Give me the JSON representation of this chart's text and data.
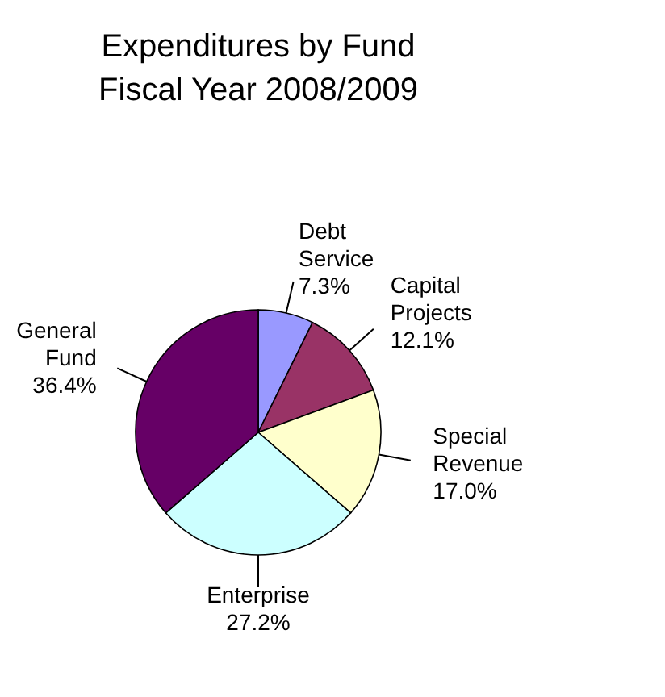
{
  "chart_data": {
    "type": "pie",
    "title": "Expenditures by Fund",
    "subtitle": "Fiscal Year 2008/2009",
    "categories": [
      "Debt Service",
      "Capital Projects",
      "Special Revenue",
      "Enterprise",
      "General Fund"
    ],
    "values": [
      7.3,
      12.1,
      17.0,
      27.2,
      36.4
    ],
    "colors": [
      "#9999ff",
      "#993366",
      "#ffffcc",
      "#ccffff",
      "#660066"
    ],
    "value_labels": [
      "7.3%",
      "12.1%",
      "17.0%",
      "27.2%",
      "36.4%"
    ],
    "legend": false
  }
}
